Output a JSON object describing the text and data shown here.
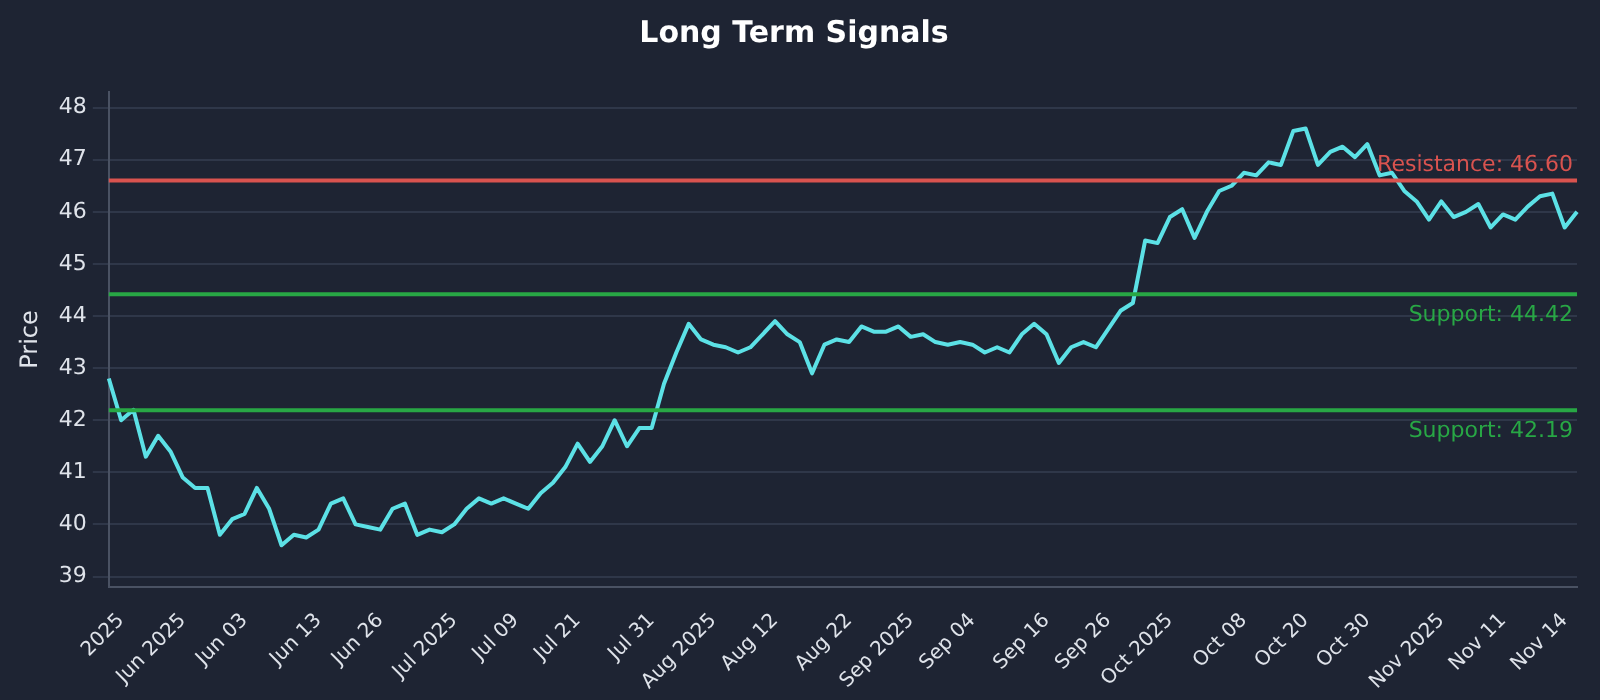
{
  "chart_data": {
    "type": "line",
    "title": "Long Term Signals",
    "ylabel": "Price",
    "categories": [
      null,
      "2025",
      null,
      null,
      null,
      null,
      "Jun 2025",
      null,
      null,
      null,
      null,
      "Jun 03",
      null,
      null,
      null,
      null,
      null,
      "Jun 13",
      null,
      null,
      null,
      null,
      "Jun 26",
      null,
      null,
      null,
      null,
      null,
      "Jul 2025",
      null,
      null,
      null,
      null,
      "Jul 09",
      null,
      null,
      null,
      null,
      "Jul 21",
      null,
      null,
      null,
      null,
      null,
      "Jul 31",
      null,
      null,
      null,
      null,
      "Aug 2025",
      null,
      null,
      null,
      null,
      "Aug 12",
      null,
      null,
      null,
      null,
      null,
      "Aug 22",
      null,
      null,
      null,
      null,
      "Sep 2025",
      null,
      null,
      null,
      null,
      "Sep 04",
      null,
      null,
      null,
      null,
      null,
      "Sep 16",
      null,
      null,
      null,
      null,
      "Sep 26",
      null,
      null,
      null,
      null,
      "Oct 2025",
      null,
      null,
      null,
      null,
      null,
      "Oct 08",
      null,
      null,
      null,
      null,
      "Oct 20",
      null,
      null,
      null,
      null,
      "Oct 30",
      null,
      null,
      null,
      null,
      null,
      "Nov 2025",
      null,
      null,
      null,
      null,
      "Nov 11",
      null,
      null,
      null,
      null,
      "Nov 14",
      null
    ],
    "series": [
      {
        "color": "#5ce1e6",
        "values": [
          42.8,
          42.0,
          42.2,
          41.3,
          41.7,
          41.4,
          40.9,
          40.7,
          40.7,
          39.8,
          40.1,
          40.2,
          40.7,
          40.3,
          39.6,
          39.8,
          39.75,
          39.9,
          40.4,
          40.5,
          40.0,
          39.95,
          39.9,
          40.3,
          40.4,
          39.8,
          39.9,
          39.85,
          40.0,
          40.3,
          40.5,
          40.4,
          40.5,
          40.4,
          40.3,
          40.6,
          40.8,
          41.1,
          41.55,
          41.2,
          41.5,
          42.0,
          41.5,
          41.85,
          41.85,
          42.7,
          43.3,
          43.85,
          43.55,
          43.45,
          43.4,
          43.3,
          43.4,
          43.65,
          43.9,
          43.65,
          43.5,
          42.9,
          43.45,
          43.55,
          43.5,
          43.8,
          43.7,
          43.7,
          43.8,
          43.6,
          43.65,
          43.5,
          43.45,
          43.5,
          43.45,
          43.3,
          43.4,
          43.3,
          43.65,
          43.85,
          43.65,
          43.1,
          43.4,
          43.5,
          43.4,
          43.75,
          44.1,
          44.25,
          45.45,
          45.4,
          45.9,
          46.05,
          45.5,
          46.0,
          46.4,
          46.5,
          46.75,
          46.7,
          46.95,
          46.9,
          47.55,
          47.6,
          46.9,
          47.15,
          47.25,
          47.05,
          47.3,
          46.7,
          46.75,
          46.4,
          46.2,
          45.85,
          46.2,
          45.9,
          46.0,
          46.15,
          45.7,
          45.95,
          45.85,
          46.1,
          46.3,
          46.35,
          45.7,
          46.0
        ]
      }
    ],
    "ylim": [
      38.8,
      48.3
    ],
    "yticks": [
      39,
      40,
      41,
      42,
      43,
      44,
      45,
      46,
      47,
      48
    ],
    "grid": "y",
    "legend": false,
    "marker": "none",
    "line_style": "solid",
    "ref_lines": [
      {
        "axis": "y",
        "value": 46.6,
        "label": "Resistance: 46.60",
        "color": "#d9534f"
      },
      {
        "axis": "y",
        "value": 44.42,
        "label": "Support: 44.42",
        "color": "#28a745"
      },
      {
        "axis": "y",
        "value": 42.19,
        "label": "Support: 42.19",
        "color": "#28a745"
      }
    ]
  }
}
